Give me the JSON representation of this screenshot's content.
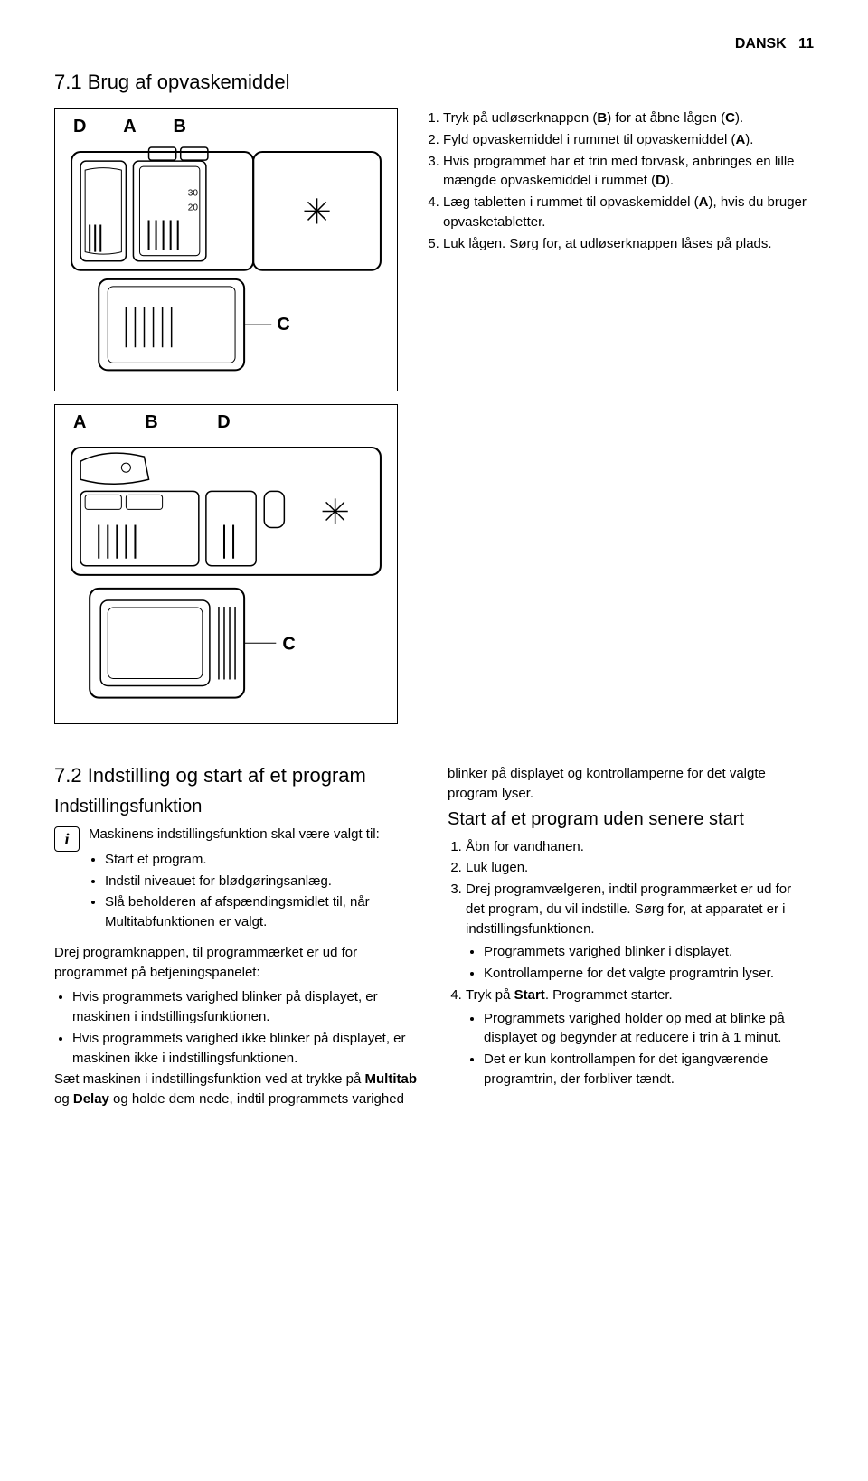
{
  "header": {
    "lang": "DANSK",
    "page": "11"
  },
  "section71": {
    "title": "7.1 Brug af opvaskemiddel",
    "labels_top": "D A B",
    "labels_bottom": "A  B  D",
    "label_c": "C",
    "steps": [
      "Tryk på udløserknappen (<b>B</b>) for at åbne lågen (<b>C</b>).",
      "Fyld opvaskemiddel i rummet til opvaskemiddel (<b>A</b>).",
      "Hvis programmet har et trin med forvask, anbringes en lille mængde opvaskemiddel i rummet (<b>D</b>).",
      "Læg tabletten i rummet til opvaskemiddel (<b>A</b>), hvis du bruger opvasketabletter.",
      "Luk lågen. Sørg for, at udløserknappen låses på plads."
    ]
  },
  "section72": {
    "title": "7.2 Indstilling og start af et program",
    "left": {
      "heading": "Indstillingsfunktion",
      "info_text": "Maskinens indstillingsfunktion skal være valgt til:",
      "info_bullets": [
        "Start et program.",
        "Indstil niveauet for blødgøringsanlæg.",
        "Slå beholderen af afspændingsmidlet til, når Multitabfunktionen er valgt."
      ],
      "para1": "Drej programknappen, til programmærket er ud for programmet på betjeningspanelet:",
      "para1_bullets": [
        "Hvis programmets varighed blinker på displayet, er maskinen i indstillingsfunktionen.",
        "Hvis programmets varighed ikke blinker på displayet, er maskinen ikke i indstillingsfunktionen."
      ],
      "para2": "Sæt maskinen i indstillingsfunktion ved at trykke på <b>Multitab</b> og <b>Delay</b> og holde dem nede, indtil programmets varighed"
    },
    "right": {
      "cont": "blinker på displayet og kontrollamperne for det valgte program lyser.",
      "heading": "Start af et program uden senere start",
      "steps": [
        "Åbn for vandhanen.",
        "Luk lugen.",
        "Drej programvælgeren, indtil programmærket er ud for det program, du vil indstille. Sørg for, at apparatet er i indstillingsfunktionen."
      ],
      "step3_bullets": [
        "Programmets varighed blinker i displayet.",
        "Kontrollamperne for det valgte programtrin lyser."
      ],
      "step4": "Tryk på <b>Start</b>. Programmet starter.",
      "step4_bullets": [
        "Programmets varighed holder op med at blinke på displayet og begynder at reducere i trin à 1 minut.",
        "Det er kun kontrollampen for det igangværende programtrin, der forbliver tændt."
      ]
    }
  }
}
